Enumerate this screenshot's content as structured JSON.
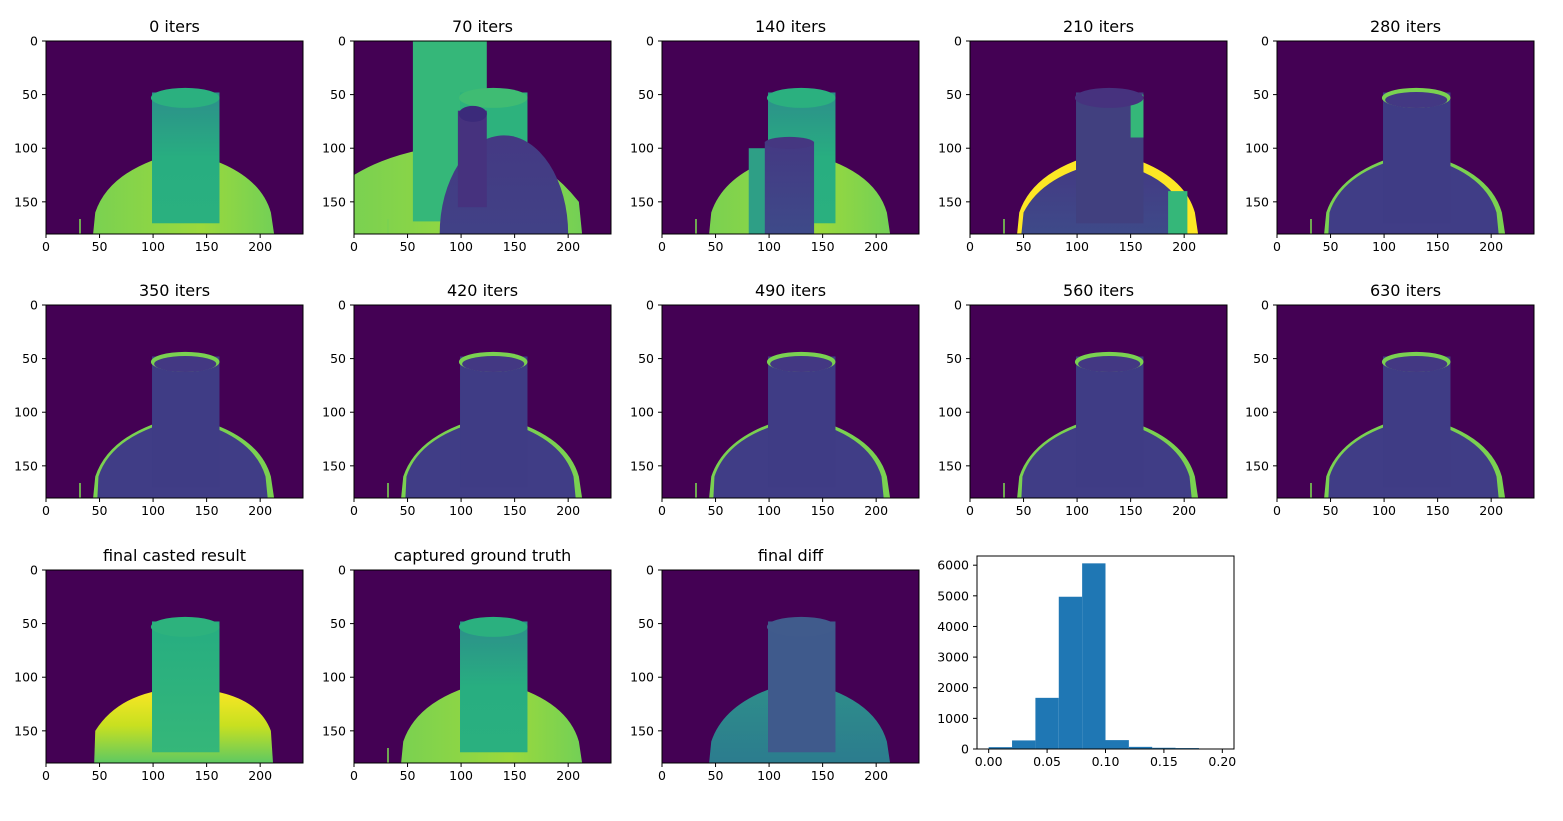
{
  "figure": {
    "colors": {
      "background": "#440154",
      "low": "#3b2a7a",
      "mid": "#2a9a8a",
      "green": "#35b779",
      "lightgreen": "#7ad151",
      "yellow": "#fde725",
      "bar": "#1f77b4",
      "axis": "#000000"
    },
    "colormap": "viridis"
  },
  "chart_data": [
    {
      "type": "heatmap",
      "title": "0 iters",
      "xlim": [
        0,
        240
      ],
      "ylim": [
        180,
        0
      ],
      "xticks": [
        "0",
        "50",
        "100",
        "150",
        "200"
      ],
      "yticks": [
        "0",
        "50",
        "100",
        "150"
      ],
      "variant": "iter0"
    },
    {
      "type": "heatmap",
      "title": "70 iters",
      "xlim": [
        0,
        240
      ],
      "ylim": [
        180,
        0
      ],
      "xticks": [
        "0",
        "50",
        "100",
        "150",
        "200"
      ],
      "yticks": [
        "0",
        "50",
        "100",
        "150"
      ],
      "variant": "iter70"
    },
    {
      "type": "heatmap",
      "title": "140 iters",
      "xlim": [
        0,
        240
      ],
      "ylim": [
        180,
        0
      ],
      "xticks": [
        "0",
        "50",
        "100",
        "150",
        "200"
      ],
      "yticks": [
        "0",
        "50",
        "100",
        "150"
      ],
      "variant": "iter140"
    },
    {
      "type": "heatmap",
      "title": "210 iters",
      "xlim": [
        0,
        240
      ],
      "ylim": [
        180,
        0
      ],
      "xticks": [
        "0",
        "50",
        "100",
        "150",
        "200"
      ],
      "yticks": [
        "0",
        "50",
        "100",
        "150"
      ],
      "variant": "iter210"
    },
    {
      "type": "heatmap",
      "title": "280 iters",
      "xlim": [
        0,
        240
      ],
      "ylim": [
        180,
        0
      ],
      "xticks": [
        "0",
        "50",
        "100",
        "150",
        "200"
      ],
      "yticks": [
        "0",
        "50",
        "100",
        "150"
      ],
      "variant": "iterLate"
    },
    {
      "type": "heatmap",
      "title": "350 iters",
      "xlim": [
        0,
        240
      ],
      "ylim": [
        180,
        0
      ],
      "xticks": [
        "0",
        "50",
        "100",
        "150",
        "200"
      ],
      "yticks": [
        "0",
        "50",
        "100",
        "150"
      ],
      "variant": "iterLate"
    },
    {
      "type": "heatmap",
      "title": "420 iters",
      "xlim": [
        0,
        240
      ],
      "ylim": [
        180,
        0
      ],
      "xticks": [
        "0",
        "50",
        "100",
        "150",
        "200"
      ],
      "yticks": [
        "0",
        "50",
        "100",
        "150"
      ],
      "variant": "iterLate"
    },
    {
      "type": "heatmap",
      "title": "490 iters",
      "xlim": [
        0,
        240
      ],
      "ylim": [
        180,
        0
      ],
      "xticks": [
        "0",
        "50",
        "100",
        "150",
        "200"
      ],
      "yticks": [
        "0",
        "50",
        "100",
        "150"
      ],
      "variant": "iterLate"
    },
    {
      "type": "heatmap",
      "title": "560 iters",
      "xlim": [
        0,
        240
      ],
      "ylim": [
        180,
        0
      ],
      "xticks": [
        "0",
        "50",
        "100",
        "150",
        "200"
      ],
      "yticks": [
        "0",
        "50",
        "100",
        "150"
      ],
      "variant": "iterLate"
    },
    {
      "type": "heatmap",
      "title": "630 iters",
      "xlim": [
        0,
        240
      ],
      "ylim": [
        180,
        0
      ],
      "xticks": [
        "0",
        "50",
        "100",
        "150",
        "200"
      ],
      "yticks": [
        "0",
        "50",
        "100",
        "150"
      ],
      "variant": "iterLate"
    },
    {
      "type": "heatmap",
      "title": "final casted result",
      "xlim": [
        0,
        240
      ],
      "ylim": [
        180,
        0
      ],
      "xticks": [
        "0",
        "50",
        "100",
        "150",
        "200"
      ],
      "yticks": [
        "0",
        "50",
        "100",
        "150"
      ],
      "variant": "final"
    },
    {
      "type": "heatmap",
      "title": "captured ground truth",
      "xlim": [
        0,
        240
      ],
      "ylim": [
        180,
        0
      ],
      "xticks": [
        "0",
        "50",
        "100",
        "150",
        "200"
      ],
      "yticks": [
        "0",
        "50",
        "100",
        "150"
      ],
      "variant": "gt"
    },
    {
      "type": "heatmap",
      "title": "final diff",
      "xlim": [
        0,
        240
      ],
      "ylim": [
        180,
        0
      ],
      "xticks": [
        "0",
        "50",
        "100",
        "150",
        "200"
      ],
      "yticks": [
        "0",
        "50",
        "100",
        "150"
      ],
      "variant": "diff"
    },
    {
      "type": "bar",
      "title": "",
      "bin_edges": [
        0.0,
        0.02,
        0.04,
        0.06,
        0.08,
        0.1,
        0.12,
        0.14,
        0.16,
        0.18,
        0.2
      ],
      "values": [
        60,
        280,
        1670,
        4970,
        6060,
        290,
        70,
        40,
        30,
        5
      ],
      "xlim": [
        -0.01,
        0.21
      ],
      "ylim": [
        0,
        6300
      ],
      "xticks": [
        "0.00",
        "0.05",
        "0.10",
        "0.15",
        "0.20"
      ],
      "yticks": [
        "0",
        "1000",
        "2000",
        "3000",
        "4000",
        "5000",
        "6000"
      ]
    }
  ]
}
